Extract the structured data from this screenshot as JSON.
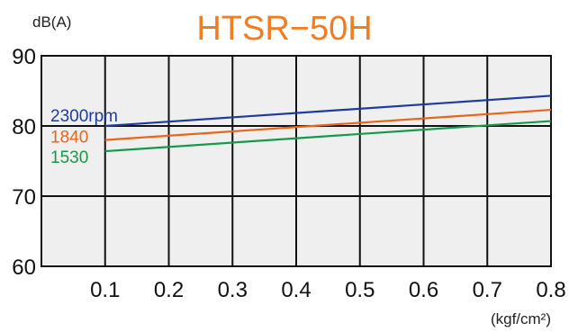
{
  "chart_data": {
    "type": "line",
    "title": "HTSR−50H",
    "ylabel": "dB(A)",
    "xlabel": "(kgf/cm²)",
    "xlim": [
      0,
      0.8
    ],
    "ylim": [
      60,
      90
    ],
    "x_ticks": [
      "0.1",
      "0.2",
      "0.3",
      "0.4",
      "0.5",
      "0.6",
      "0.7",
      "0.8"
    ],
    "y_ticks": [
      "60",
      "70",
      "80",
      "90"
    ],
    "x_tick_values": [
      0.1,
      0.2,
      0.3,
      0.4,
      0.5,
      0.6,
      0.7,
      0.8
    ],
    "y_tick_values": [
      60,
      70,
      80,
      90
    ],
    "grid": true,
    "series": [
      {
        "name": "2300rpm",
        "color": "#1f3c9b",
        "x": [
          0.1,
          0.8
        ],
        "values": [
          80.0,
          84.3
        ]
      },
      {
        "name": "1840",
        "color": "#e8651a",
        "x": [
          0.1,
          0.8
        ],
        "values": [
          78.0,
          82.3
        ]
      },
      {
        "name": "1530",
        "color": "#16994a",
        "x": [
          0.1,
          0.8
        ],
        "values": [
          76.4,
          80.7
        ]
      }
    ],
    "colors": {
      "title": "#ef7d22",
      "plot_bg": "#efefef",
      "grid": "#111111"
    }
  }
}
